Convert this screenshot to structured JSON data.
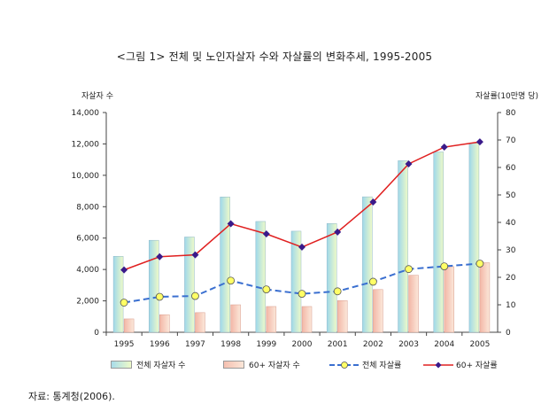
{
  "chart_data": {
    "type": "bar",
    "title": "<그림 1>  전체 및 노인자살자 수와 자살률의 변화추세, 1995-2005",
    "ylabel_left": "자살자 수",
    "ylabel_right": "자살률(10만명 당)",
    "categories": [
      "1995",
      "1996",
      "1997",
      "1998",
      "1999",
      "2000",
      "2001",
      "2002",
      "2003",
      "2004",
      "2005"
    ],
    "ylim_left": [
      0,
      14000
    ],
    "yticks_left": [
      "0",
      "2,000",
      "4,000",
      "6,000",
      "8,000",
      "10,000",
      "12,000",
      "14,000"
    ],
    "ylim_right": [
      0,
      80
    ],
    "yticks_right": [
      "0",
      "10",
      "20",
      "30",
      "40",
      "50",
      "60",
      "70",
      "80"
    ],
    "series": [
      {
        "name": "전체 자살자 수",
        "kind": "bar",
        "axis": "left",
        "values": [
          4840,
          5860,
          6070,
          8620,
          7060,
          6440,
          6930,
          8630,
          10930,
          11490,
          12050
        ],
        "color": "#a8dcea"
      },
      {
        "name": "60+ 자살자 수",
        "kind": "bar",
        "axis": "left",
        "values": [
          850,
          1120,
          1250,
          1750,
          1640,
          1640,
          2020,
          2720,
          3630,
          4180,
          4430
        ],
        "color": "#f5c0b0"
      },
      {
        "name": "전체 자살률",
        "kind": "line",
        "axis": "right",
        "values": [
          10.8,
          12.9,
          13.2,
          18.8,
          15.6,
          14.0,
          14.9,
          18.4,
          23.0,
          24.0,
          25.0
        ],
        "color": "#3a6fd0"
      },
      {
        "name": "60+ 자살률",
        "kind": "line",
        "axis": "right",
        "values": [
          22.7,
          27.5,
          28.2,
          39.5,
          35.8,
          31.0,
          36.5,
          47.4,
          61.3,
          67.4,
          69.3
        ],
        "color": "#e02020"
      }
    ],
    "grid": false,
    "legend": "bottom"
  },
  "source_note": "자료: 통계청(2006)."
}
